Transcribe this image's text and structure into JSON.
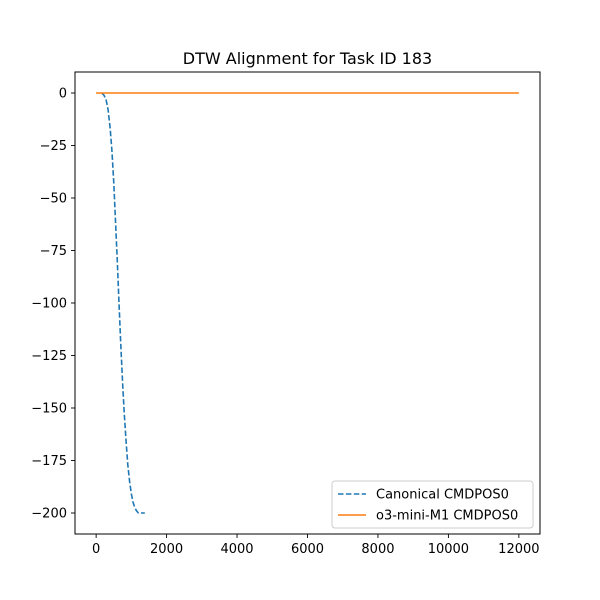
{
  "chart_data": {
    "type": "line",
    "title": "DTW Alignment for Task ID 183",
    "xlabel": "",
    "ylabel": "",
    "xlim": [
      -600,
      12600
    ],
    "ylim": [
      -210,
      10
    ],
    "xticks": [
      0,
      2000,
      4000,
      6000,
      8000,
      10000,
      12000
    ],
    "xtick_labels": [
      "0",
      "2000",
      "4000",
      "6000",
      "8000",
      "10000",
      "12000"
    ],
    "yticks": [
      0,
      -25,
      -50,
      -75,
      -100,
      -125,
      -150,
      -175,
      -200
    ],
    "ytick_labels": [
      "0",
      "−25",
      "−50",
      "−75",
      "−100",
      "−125",
      "−150",
      "−175",
      "−200"
    ],
    "grid": false,
    "legend_position": "bottom-right",
    "series": [
      {
        "name": "Canonical CMDPOS0",
        "color": "#1f77b4",
        "style": "dashed",
        "x": [
          160,
          220,
          280,
          340,
          400,
          450,
          500,
          550,
          600,
          650,
          700,
          750,
          800,
          850,
          900,
          950,
          1000,
          1050,
          1100,
          1150,
          1200,
          1280,
          1380
        ],
        "y": [
          0,
          -1,
          -3,
          -8,
          -17,
          -28,
          -43,
          -61,
          -80,
          -100,
          -120,
          -138,
          -153,
          -166,
          -177,
          -185,
          -191,
          -195,
          -197.5,
          -199,
          -200,
          -200,
          -200
        ]
      },
      {
        "name": "o3-mini-M1 CMDPOS0",
        "color": "#ff7f0e",
        "style": "solid",
        "x": [
          0,
          12000
        ],
        "y": [
          0,
          0
        ]
      }
    ]
  }
}
